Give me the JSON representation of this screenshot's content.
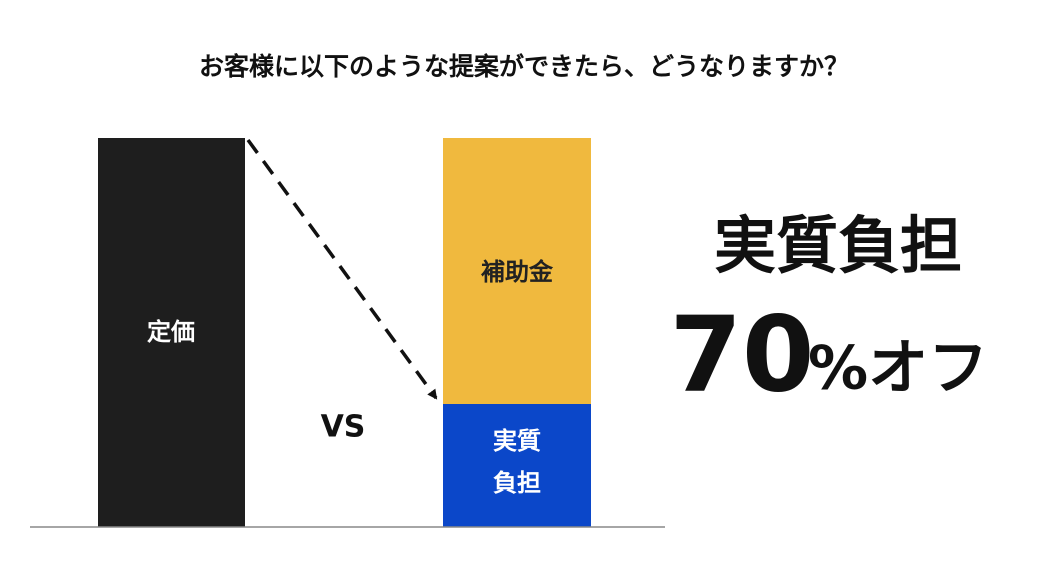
{
  "title": "お客様に以下のような提案ができたら、どうなりますか？",
  "left_bar": {
    "label": "定価"
  },
  "vs": "VS",
  "right_bar": {
    "top_label": "補助金",
    "bottom_label": [
      "実質",
      "負担"
    ]
  },
  "headline": {
    "line1": "実質負担",
    "number": "70",
    "suffix": "%オフ"
  }
}
